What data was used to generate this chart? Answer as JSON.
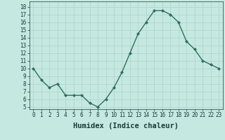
{
  "x": [
    0,
    1,
    2,
    3,
    4,
    5,
    6,
    7,
    8,
    9,
    10,
    11,
    12,
    13,
    14,
    15,
    16,
    17,
    18,
    19,
    20,
    21,
    22,
    23
  ],
  "y": [
    10,
    8.5,
    7.5,
    8,
    6.5,
    6.5,
    6.5,
    5.5,
    5,
    6,
    7.5,
    9.5,
    12,
    14.5,
    16,
    17.5,
    17.5,
    17,
    16,
    13.5,
    12.5,
    11,
    10.5,
    10
  ],
  "xlabel": "Humidex (Indice chaleur)",
  "ylabel": "",
  "xlim": [
    -0.5,
    23.5
  ],
  "ylim": [
    4.7,
    18.7
  ],
  "yticks": [
    5,
    6,
    7,
    8,
    9,
    10,
    11,
    12,
    13,
    14,
    15,
    16,
    17,
    18
  ],
  "xticks": [
    0,
    1,
    2,
    3,
    4,
    5,
    6,
    7,
    8,
    9,
    10,
    11,
    12,
    13,
    14,
    15,
    16,
    17,
    18,
    19,
    20,
    21,
    22,
    23
  ],
  "line_color": "#2e6e62",
  "marker_color": "#2e6e62",
  "bg_color": "#c5e8e0",
  "grid_color": "#b0d8ce",
  "label_color": "#1a3c3c",
  "tick_label_size": 5.5,
  "xlabel_size": 7.5
}
